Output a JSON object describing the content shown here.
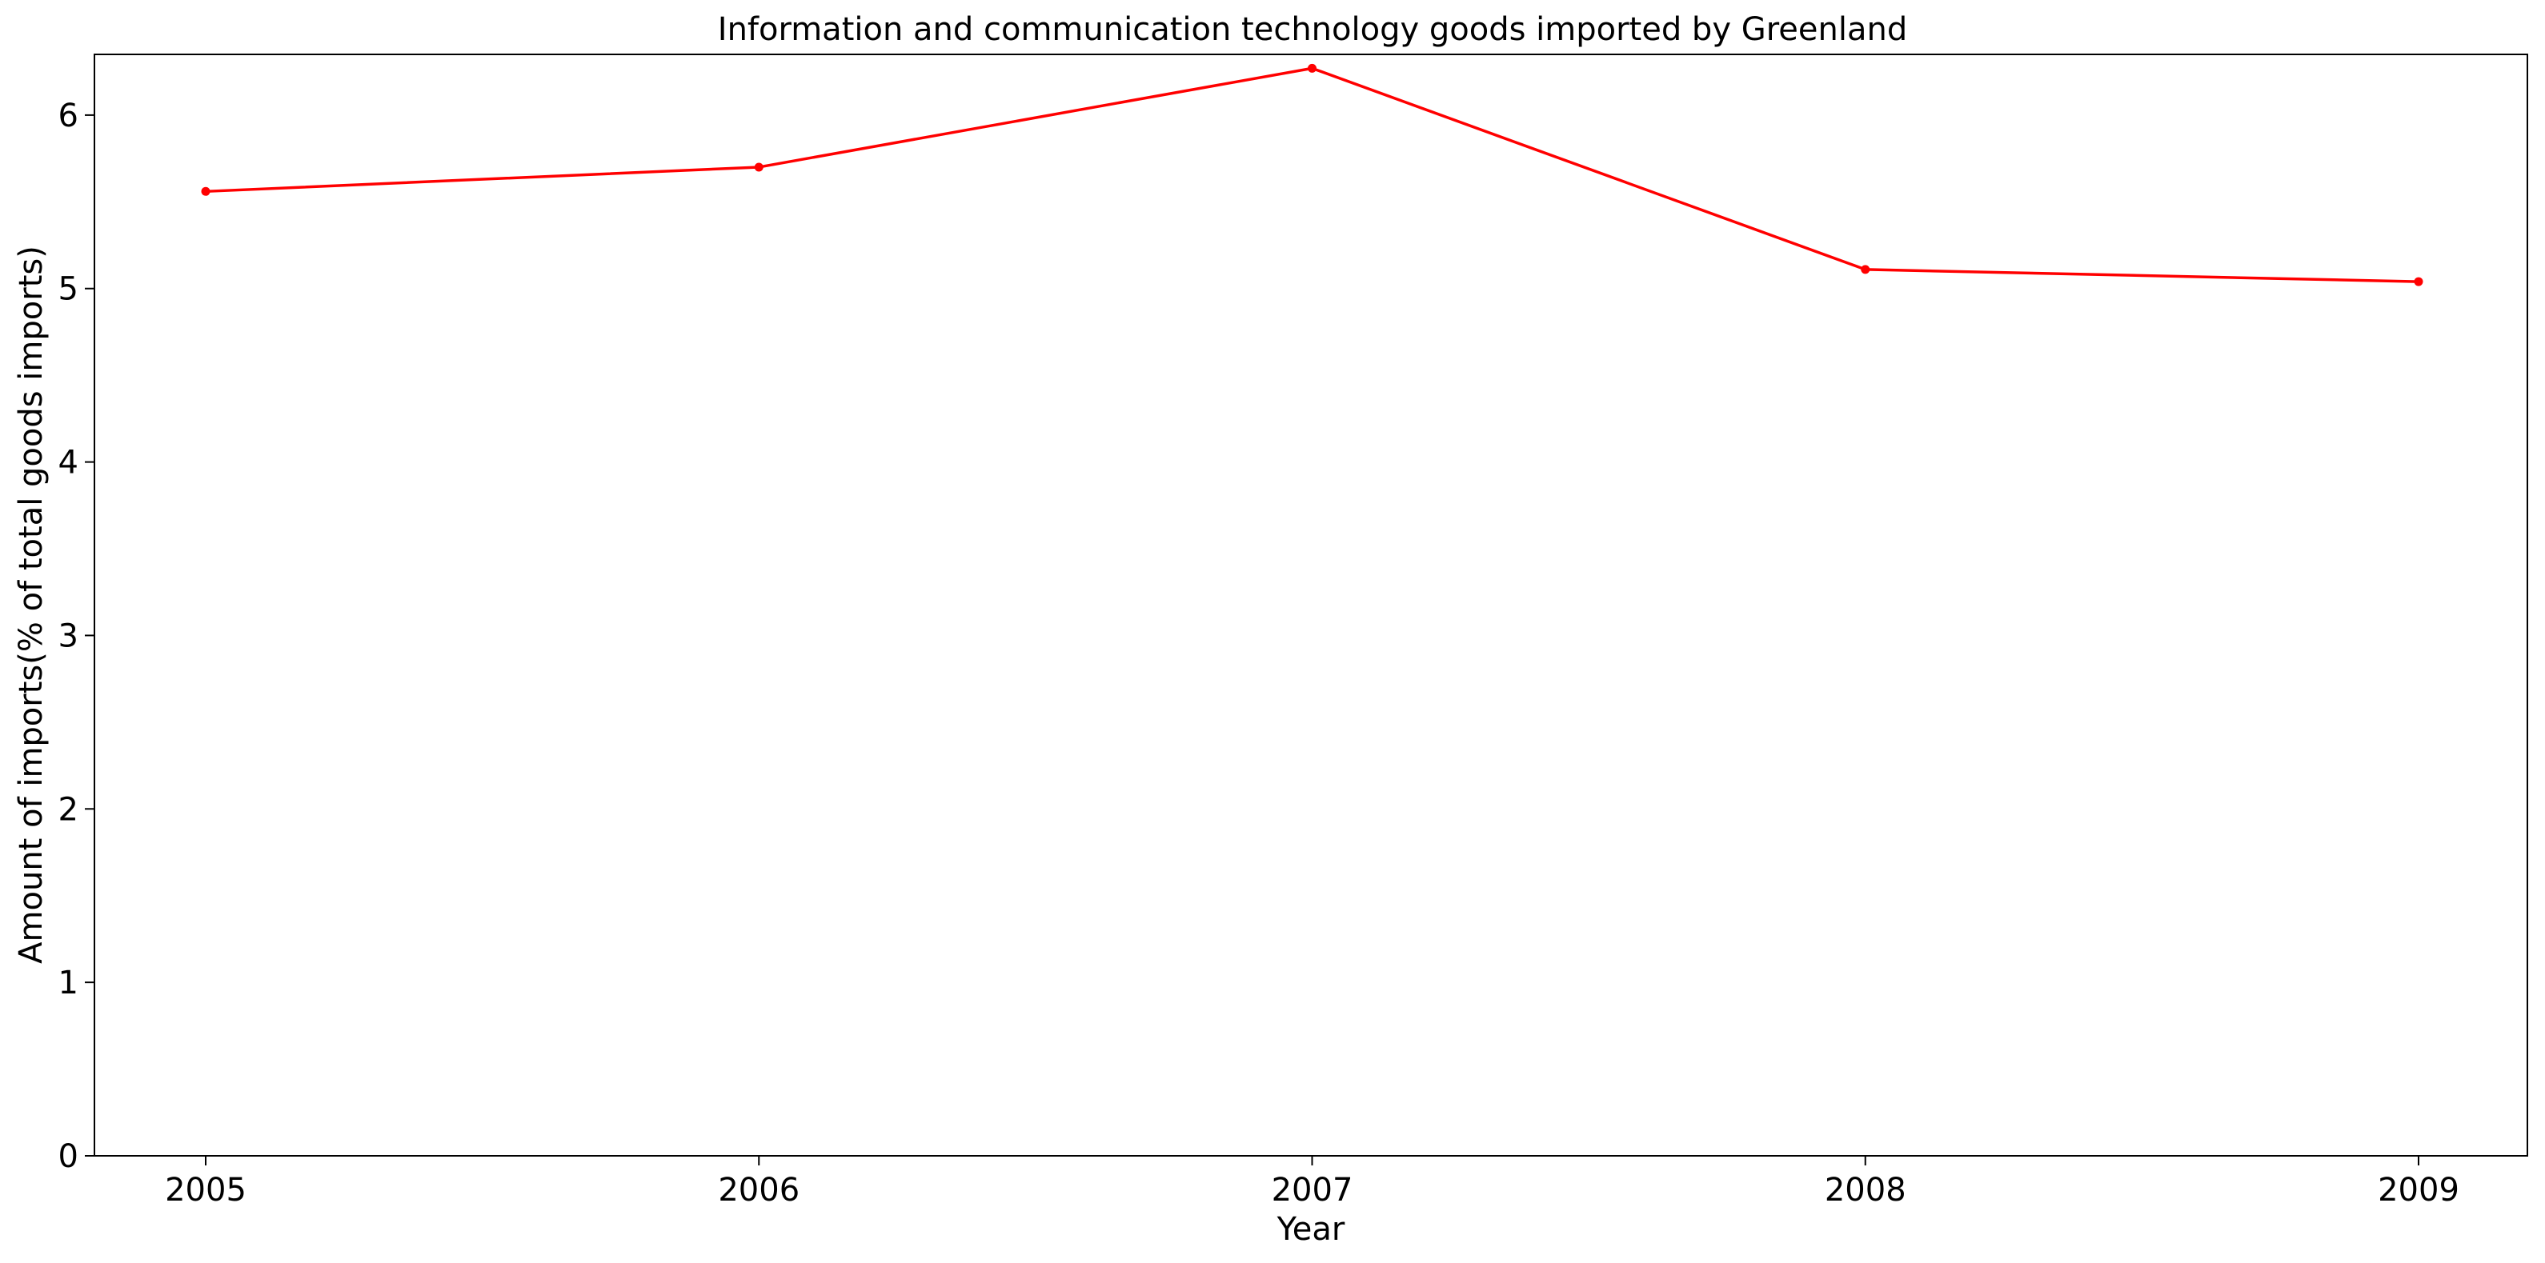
{
  "chart_data": {
    "type": "line",
    "title": "Information and communication technology goods imported by Greenland",
    "xlabel": "Year",
    "ylabel": "Amount of imports(% of total goods imports)",
    "categories": [
      "2005",
      "2006",
      "2007",
      "2008",
      "2009"
    ],
    "series": [
      {
        "values": [
          5.56,
          5.7,
          6.27,
          5.11,
          5.04
        ],
        "color": "#ff0000"
      }
    ],
    "yticks": [
      "0",
      "1",
      "2",
      "3",
      "4",
      "5",
      "6"
    ],
    "ylim": [
      0,
      6.35
    ],
    "grid": false,
    "legend": "none"
  }
}
